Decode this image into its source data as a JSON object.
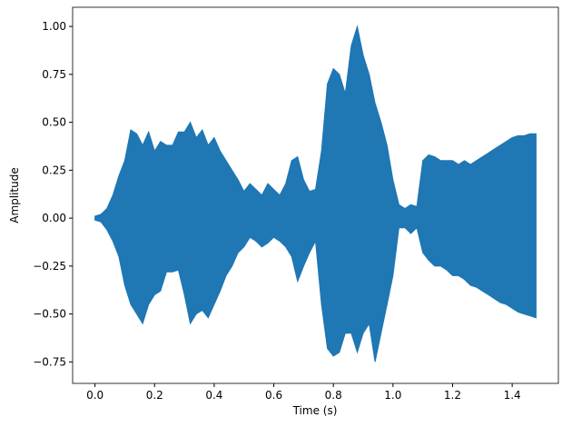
{
  "chart_data": {
    "type": "area",
    "xlabel": "Time (s)",
    "ylabel": "Amplitude",
    "color": "#1f77b4",
    "x": [
      0.0,
      0.02,
      0.04,
      0.06,
      0.08,
      0.1,
      0.12,
      0.14,
      0.16,
      0.18,
      0.2,
      0.22,
      0.24,
      0.26,
      0.28,
      0.3,
      0.32,
      0.34,
      0.36,
      0.38,
      0.4,
      0.42,
      0.44,
      0.46,
      0.48,
      0.5,
      0.52,
      0.54,
      0.56,
      0.58,
      0.6,
      0.62,
      0.64,
      0.66,
      0.68,
      0.7,
      0.72,
      0.74,
      0.76,
      0.78,
      0.8,
      0.82,
      0.84,
      0.86,
      0.88,
      0.9,
      0.92,
      0.94,
      0.96,
      0.98,
      1.0,
      1.02,
      1.04,
      1.06,
      1.08,
      1.1,
      1.12,
      1.14,
      1.16,
      1.18,
      1.2,
      1.22,
      1.24,
      1.26,
      1.28,
      1.3,
      1.32,
      1.34,
      1.36,
      1.38,
      1.4,
      1.42,
      1.44,
      1.46,
      1.48
    ],
    "upper": [
      0.01,
      0.02,
      0.05,
      0.12,
      0.22,
      0.3,
      0.46,
      0.44,
      0.38,
      0.45,
      0.35,
      0.4,
      0.38,
      0.38,
      0.45,
      0.45,
      0.5,
      0.42,
      0.46,
      0.38,
      0.42,
      0.35,
      0.3,
      0.25,
      0.2,
      0.14,
      0.18,
      0.15,
      0.12,
      0.18,
      0.15,
      0.12,
      0.18,
      0.3,
      0.32,
      0.2,
      0.14,
      0.15,
      0.35,
      0.7,
      0.78,
      0.75,
      0.65,
      0.9,
      1.0,
      0.85,
      0.75,
      0.6,
      0.5,
      0.38,
      0.2,
      0.07,
      0.05,
      0.07,
      0.06,
      0.3,
      0.33,
      0.32,
      0.3,
      0.3,
      0.3,
      0.28,
      0.3,
      0.28,
      0.3,
      0.32,
      0.34,
      0.36,
      0.38,
      0.4,
      0.42,
      0.43,
      0.43,
      0.44,
      0.44
    ],
    "lower": [
      -0.01,
      -0.02,
      -0.06,
      -0.12,
      -0.2,
      -0.35,
      -0.45,
      -0.5,
      -0.55,
      -0.45,
      -0.4,
      -0.38,
      -0.28,
      -0.28,
      -0.27,
      -0.4,
      -0.55,
      -0.5,
      -0.48,
      -0.52,
      -0.45,
      -0.38,
      -0.3,
      -0.25,
      -0.18,
      -0.15,
      -0.1,
      -0.12,
      -0.15,
      -0.13,
      -0.1,
      -0.12,
      -0.15,
      -0.2,
      -0.33,
      -0.25,
      -0.18,
      -0.12,
      -0.45,
      -0.68,
      -0.72,
      -0.7,
      -0.6,
      -0.6,
      -0.7,
      -0.6,
      -0.55,
      -0.75,
      -0.6,
      -0.45,
      -0.3,
      -0.05,
      -0.05,
      -0.08,
      -0.05,
      -0.18,
      -0.22,
      -0.25,
      -0.25,
      -0.27,
      -0.3,
      -0.3,
      -0.32,
      -0.35,
      -0.36,
      -0.38,
      -0.4,
      -0.42,
      -0.44,
      -0.45,
      -0.47,
      -0.49,
      -0.5,
      -0.51,
      -0.52
    ],
    "xlim": [
      -0.075,
      1.555
    ],
    "ylim": [
      -0.862,
      1.1
    ],
    "xticks": [
      {
        "value": 0,
        "label": "0.0"
      },
      0.2,
      0.4,
      0.6,
      0.8,
      {
        "value": 1,
        "label": "1.0"
      },
      1.2,
      1.4
    ],
    "yticks": [
      {
        "value": -0.75,
        "label": "−0.75"
      },
      {
        "value": -0.5,
        "label": "−0.50"
      },
      {
        "value": -0.25,
        "label": "−0.25"
      },
      {
        "value": 0,
        "label": "0.00"
      },
      {
        "value": 0.25,
        "label": "0.25"
      },
      {
        "value": 0.5,
        "label": "0.50"
      },
      {
        "value": 0.75,
        "label": "0.75"
      },
      {
        "value": 1,
        "label": "1.00"
      }
    ]
  }
}
